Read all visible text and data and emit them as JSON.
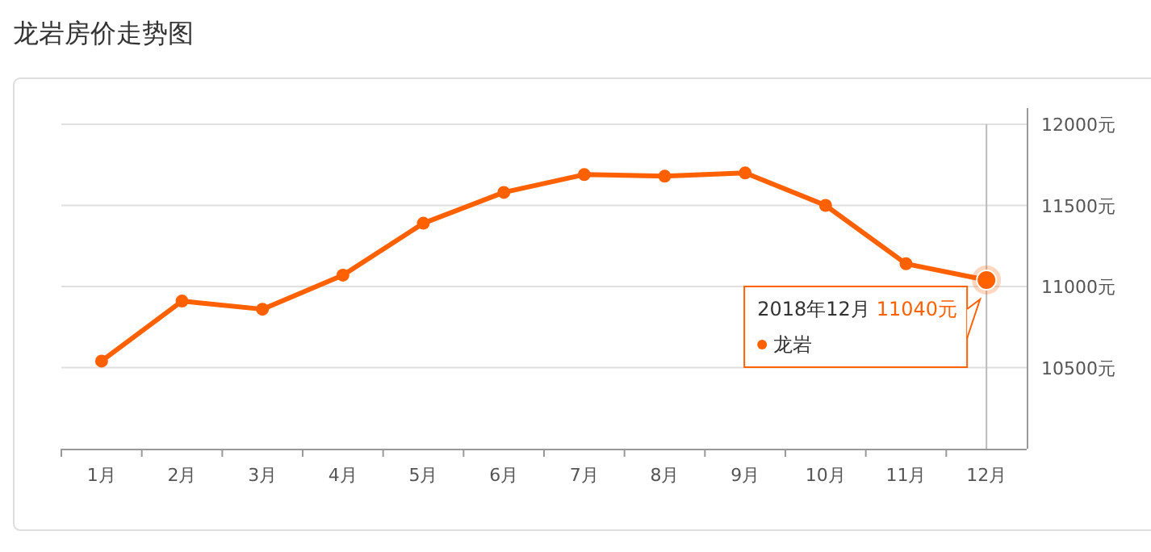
{
  "chart_data": {
    "type": "line",
    "title": "龙岩房价走势图",
    "categories": [
      "1月",
      "2月",
      "3月",
      "4月",
      "5月",
      "6月",
      "7月",
      "8月",
      "9月",
      "10月",
      "11月",
      "12月"
    ],
    "series": [
      {
        "name": "龙岩",
        "color": "#ff6000",
        "values": [
          10540,
          10910,
          10860,
          11070,
          11390,
          11580,
          11690,
          11680,
          11700,
          11500,
          11140,
          11040
        ],
        "value_labels": [
          null,
          null,
          null,
          null,
          null,
          null,
          null,
          null,
          null,
          null,
          null,
          "11040元"
        ]
      }
    ],
    "ylim": [
      10000,
      12000
    ],
    "yticks": [
      {
        "value": 10500,
        "label": "10500元"
      },
      {
        "value": 11000,
        "label": "11000元"
      },
      {
        "value": 11500,
        "label": "11500元"
      },
      {
        "value": 12000,
        "label": "12000元"
      }
    ],
    "grid": "y",
    "marker": "circle",
    "line_style": "solid",
    "legend": "right",
    "annotations": [
      "2018年12月"
    ],
    "ref_lines": [
      {
        "axis": "x",
        "value": "12月",
        "label": null,
        "color": "#bbbbbb"
      }
    ]
  }
}
